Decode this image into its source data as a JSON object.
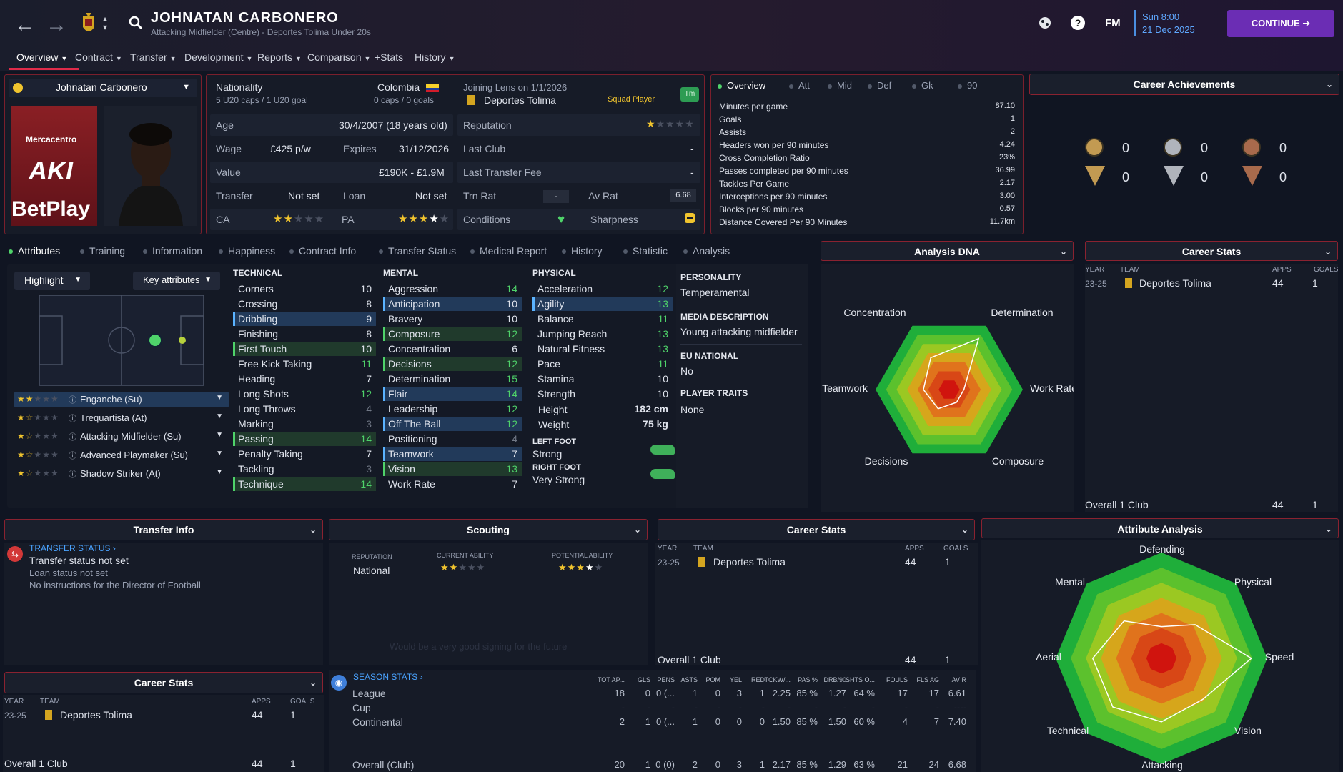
{
  "header": {
    "name": "JOHNATAN CARBONERO",
    "subtitle": "Attacking Midfielder (Centre) - Deportes Tolima Under 20s",
    "date": "Sun 8:00",
    "date2": "21 Dec 2025",
    "continue": "CONTINUE",
    "fm": "FM",
    "menu": [
      "Overview",
      "Contract",
      "Transfer",
      "Development",
      "Reports",
      "Comparison",
      "+Stats",
      "History"
    ]
  },
  "profile": {
    "player_select": "Johnatan Carbonero",
    "nationality_label": "Nationality",
    "nationality": "Colombia",
    "caps": "5 U20 caps / 1 U20 goal",
    "caps2": "0 caps / 0 goals",
    "joining": "Joining Lens on 1/1/2026",
    "club": "Deportes Tolima",
    "squad": "Squad Player",
    "tm": "Tm",
    "kit_sponsor": "Mercacentro",
    "kit_text1": "AKI",
    "kit_text2": "BetPlay",
    "age_l": "Age",
    "age": "30/4/2007 (18 years old)",
    "rep_l": "Reputation",
    "wage_l": "Wage",
    "wage": "£425 p/w",
    "exp_l": "Expires",
    "exp": "31/12/2026",
    "lastclub_l": "Last Club",
    "lastclub": "-",
    "value_l": "Value",
    "value": "£190K - £1.9M",
    "ltf_l": "Last Transfer Fee",
    "ltf": "-",
    "transfer_l": "Transfer",
    "transfer": "Not set",
    "loan_l": "Loan",
    "loan": "Not set",
    "trn_l": "Trn Rat",
    "trn": "-",
    "avr_l": "Av Rat",
    "avr": "6.68",
    "ca_l": "CA",
    "pa_l": "PA",
    "cond_l": "Conditions",
    "sharp_l": "Sharpness"
  },
  "overview": {
    "tabs": [
      "Overview",
      "Att",
      "Mid",
      "Def",
      "Gk",
      "90"
    ],
    "rows": [
      [
        "Minutes per game",
        "87.10"
      ],
      [
        "Goals",
        "1"
      ],
      [
        "Assists",
        "2"
      ],
      [
        "Headers won per 90 minutes",
        "4.24"
      ],
      [
        "Cross Completion Ratio",
        "23%"
      ],
      [
        "Passes completed per 90 minutes",
        "36.99"
      ],
      [
        "Tackles Per Game",
        "2.17"
      ],
      [
        "Interceptions per 90 minutes",
        "3.00"
      ],
      [
        "Blocks per 90 minutes",
        "0.57"
      ],
      [
        "Distance Covered Per 90 Minutes",
        "11.7km"
      ]
    ]
  },
  "achievements": {
    "title": "Career Achievements",
    "counts": [
      "0",
      "0",
      "0",
      "0",
      "0",
      "0"
    ]
  },
  "tabs2": [
    "Attributes",
    "Training",
    "Information",
    "Happiness",
    "Contract Info",
    "Transfer Status",
    "Medical Report",
    "History",
    "Statistic",
    "Analysis"
  ],
  "pitch": {
    "highlight": "Highlight",
    "key": "Key attributes",
    "roles": [
      "Enganche (Su)",
      "Trequartista (At)",
      "Attacking Midfielder (Su)",
      "Advanced Playmaker (Su)",
      "Shadow Striker (At)"
    ]
  },
  "technical": {
    "title": "TECHNICAL",
    "rows": [
      [
        "Corners",
        "10"
      ],
      [
        "Crossing",
        "8"
      ],
      [
        "Dribbling",
        "9"
      ],
      [
        "Finishing",
        "8"
      ],
      [
        "First Touch",
        "10"
      ],
      [
        "Free Kick Taking",
        "11"
      ],
      [
        "Heading",
        "7"
      ],
      [
        "Long Shots",
        "12"
      ],
      [
        "Long Throws",
        "4"
      ],
      [
        "Marking",
        "3"
      ],
      [
        "Passing",
        "14"
      ],
      [
        "Penalty Taking",
        "7"
      ],
      [
        "Tackling",
        "3"
      ],
      [
        "Technique",
        "14"
      ]
    ]
  },
  "mental": {
    "title": "MENTAL",
    "rows": [
      [
        "Aggression",
        "14"
      ],
      [
        "Anticipation",
        "10"
      ],
      [
        "Bravery",
        "10"
      ],
      [
        "Composure",
        "12"
      ],
      [
        "Concentration",
        "6"
      ],
      [
        "Decisions",
        "12"
      ],
      [
        "Determination",
        "15"
      ],
      [
        "Flair",
        "14"
      ],
      [
        "Leadership",
        "12"
      ],
      [
        "Off The Ball",
        "12"
      ],
      [
        "Positioning",
        "4"
      ],
      [
        "Teamwork",
        "7"
      ],
      [
        "Vision",
        "13"
      ],
      [
        "Work Rate",
        "7"
      ]
    ]
  },
  "physical": {
    "title": "PHYSICAL",
    "rows": [
      [
        "Acceleration",
        "12"
      ],
      [
        "Agility",
        "13"
      ],
      [
        "Balance",
        "11"
      ],
      [
        "Jumping Reach",
        "13"
      ],
      [
        "Natural Fitness",
        "13"
      ],
      [
        "Pace",
        "11"
      ],
      [
        "Stamina",
        "10"
      ],
      [
        "Strength",
        "10"
      ]
    ],
    "height_l": "Height",
    "height": "182 cm",
    "weight_l": "Weight",
    "weight": "75 kg",
    "lf_l": "LEFT FOOT",
    "lf": "Strong",
    "rf_l": "RIGHT FOOT",
    "rf": "Very Strong"
  },
  "info": {
    "pers_l": "PERSONALITY",
    "pers": "Temperamental",
    "media_l": "MEDIA DESCRIPTION",
    "media": "Young attacking midfielder",
    "eu_l": "EU NATIONAL",
    "eu": "No",
    "traits_l": "PLAYER TRAITS",
    "traits": "None"
  },
  "dna": {
    "title": "Analysis DNA",
    "labels": [
      "Concentration",
      "Determination",
      "Work Rate",
      "Composure",
      "Decisions",
      "Teamwork"
    ],
    "values": [
      0.5,
      0.8,
      0.2,
      0.2,
      0.3,
      0.35
    ]
  },
  "careerstats": {
    "title": "Career Stats",
    "h": [
      "YEAR",
      "TEAM",
      "APPS",
      "GOALS"
    ],
    "year": "23-25",
    "team": "Deportes Tolima",
    "apps": "44",
    "goals": "1",
    "total": "Overall 1 Club"
  },
  "transferinfo": {
    "title": "Transfer Info",
    "status_l": "TRANSFER STATUS",
    "l1": "Transfer status not set",
    "l2": "Loan status not set",
    "l3": "No instructions for the Director of Football"
  },
  "scouting": {
    "title": "Scouting",
    "rep_l": "REPUTATION",
    "rep": "National",
    "ca_l": "CURRENT ABILITY",
    "pa_l": "POTENTIAL ABILITY",
    "note": "Would be a very good signing for the future"
  },
  "season": {
    "title": "SEASON STATS",
    "h": [
      "TOT AP...",
      "GLS",
      "PENS",
      "ASTS",
      "POM",
      "YEL",
      "RED",
      "TCKW/...",
      "PAS %",
      "DRB/90",
      "SHTS O...",
      "FOULS",
      "FLS AG",
      "AV R"
    ],
    "rows": [
      [
        "League",
        "18",
        "0",
        "0 (...",
        "1",
        "0",
        "3",
        "1",
        "2.25",
        "85 %",
        "1.27",
        "64 %",
        "17",
        "17",
        "6.61"
      ],
      [
        "Cup",
        "-",
        "-",
        "-",
        "-",
        "-",
        "-",
        "-",
        "-",
        "-",
        "-",
        "-",
        "-",
        "-",
        "----"
      ],
      [
        "Continental",
        "2",
        "1",
        "0 (...",
        "1",
        "0",
        "0",
        "0",
        "1.50",
        "85 %",
        "1.50",
        "60 %",
        "4",
        "7",
        "7.40"
      ],
      [
        "Overall (Club)",
        "20",
        "1",
        "0 (0)",
        "2",
        "0",
        "3",
        "1",
        "2.17",
        "85 %",
        "1.29",
        "63 %",
        "21",
        "24",
        "6.68"
      ]
    ]
  },
  "attranalysis": {
    "title": "Attribute Analysis",
    "labels": [
      "Defending",
      "Physical",
      "Speed",
      "Vision",
      "Attacking",
      "Technical",
      "Aerial",
      "Mental"
    ],
    "values": [
      0.3,
      0.45,
      0.85,
      0.55,
      0.6,
      0.65,
      0.65,
      0.5
    ]
  },
  "colors": {
    "accent": "#e02b4a",
    "green": "#4fd36a",
    "purple": "#6b2db4"
  }
}
